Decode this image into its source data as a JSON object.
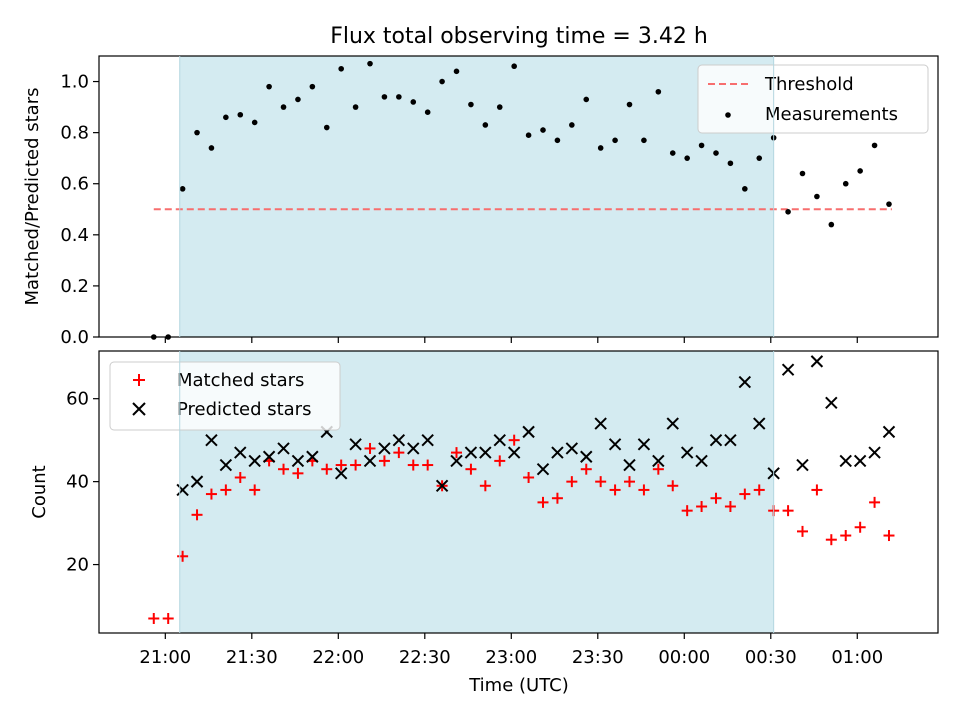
{
  "chart_data": [
    {
      "type": "scatter",
      "title": "Flux total observing time = 3.42 h",
      "xlabel": "",
      "ylabel": "Matched/Predicted stars",
      "ylim": [
        0.0,
        1.1
      ],
      "yticks": [
        "0.0",
        "0.2",
        "0.4",
        "0.6",
        "0.8",
        "1.0"
      ],
      "legend_position": "top-right",
      "shaded_interval": {
        "start": "21:05",
        "end": "00:31",
        "color": "#d4ebf1"
      },
      "threshold": {
        "name": "Threshold",
        "value": 0.5,
        "start": "20:56",
        "end": "01:12",
        "color": "#f76e6e"
      },
      "series": [
        {
          "name": "Measurements",
          "color": "#000000",
          "points": [
            [
              "20:56",
              0.0
            ],
            [
              "21:01",
              0.0
            ],
            [
              "21:06",
              0.58
            ],
            [
              "21:11",
              0.8
            ],
            [
              "21:16",
              0.74
            ],
            [
              "21:21",
              0.86
            ],
            [
              "21:26",
              0.87
            ],
            [
              "21:31",
              0.84
            ],
            [
              "21:36",
              0.98
            ],
            [
              "21:41",
              0.9
            ],
            [
              "21:46",
              0.93
            ],
            [
              "21:51",
              0.98
            ],
            [
              "21:56",
              0.82
            ],
            [
              "22:01",
              1.05
            ],
            [
              "22:06",
              0.9
            ],
            [
              "22:11",
              1.07
            ],
            [
              "22:16",
              0.94
            ],
            [
              "22:21",
              0.94
            ],
            [
              "22:26",
              0.92
            ],
            [
              "22:31",
              0.88
            ],
            [
              "22:36",
              1.0
            ],
            [
              "22:41",
              1.04
            ],
            [
              "22:46",
              0.91
            ],
            [
              "22:51",
              0.83
            ],
            [
              "22:56",
              0.9
            ],
            [
              "23:01",
              1.06
            ],
            [
              "23:06",
              0.79
            ],
            [
              "23:11",
              0.81
            ],
            [
              "23:16",
              0.77
            ],
            [
              "23:21",
              0.83
            ],
            [
              "23:26",
              0.93
            ],
            [
              "23:31",
              0.74
            ],
            [
              "23:36",
              0.77
            ],
            [
              "23:41",
              0.91
            ],
            [
              "23:46",
              0.77
            ],
            [
              "23:51",
              0.96
            ],
            [
              "23:56",
              0.72
            ],
            [
              "00:01",
              0.7
            ],
            [
              "00:06",
              0.75
            ],
            [
              "00:11",
              0.72
            ],
            [
              "00:16",
              0.68
            ],
            [
              "00:21",
              0.58
            ],
            [
              "00:26",
              0.7
            ],
            [
              "00:31",
              0.78
            ],
            [
              "00:36",
              0.49
            ],
            [
              "00:41",
              0.64
            ],
            [
              "00:46",
              0.55
            ],
            [
              "00:51",
              0.44
            ],
            [
              "00:56",
              0.6
            ],
            [
              "01:01",
              0.65
            ],
            [
              "01:06",
              0.75
            ],
            [
              "01:11",
              0.52
            ]
          ]
        }
      ]
    },
    {
      "type": "scatter",
      "title": "",
      "xlabel": "Time (UTC)",
      "ylabel": "Count",
      "ylim": [
        3.5,
        71.5
      ],
      "yticks": [
        "20",
        "40",
        "60"
      ],
      "xlim": [
        "20:37",
        "01:28"
      ],
      "xticks": [
        "21:00",
        "21:30",
        "22:00",
        "22:30",
        "23:00",
        "23:30",
        "00:00",
        "00:30",
        "01:00"
      ],
      "legend_position": "top-left",
      "shaded_interval": {
        "start": "21:05",
        "end": "00:31",
        "color": "#d4ebf1"
      },
      "series": [
        {
          "name": "Matched stars",
          "marker": "+",
          "color": "#ff0000",
          "points": [
            [
              "20:56",
              7
            ],
            [
              "21:01",
              7
            ],
            [
              "21:06",
              22
            ],
            [
              "21:11",
              32
            ],
            [
              "21:16",
              37
            ],
            [
              "21:21",
              38
            ],
            [
              "21:26",
              41
            ],
            [
              "21:31",
              38
            ],
            [
              "21:36",
              45
            ],
            [
              "21:41",
              43
            ],
            [
              "21:46",
              42
            ],
            [
              "21:51",
              45
            ],
            [
              "21:56",
              43
            ],
            [
              "22:01",
              44
            ],
            [
              "22:06",
              44
            ],
            [
              "22:11",
              48
            ],
            [
              "22:16",
              45
            ],
            [
              "22:21",
              47
            ],
            [
              "22:26",
              44
            ],
            [
              "22:31",
              44
            ],
            [
              "22:36",
              39
            ],
            [
              "22:41",
              47
            ],
            [
              "22:46",
              43
            ],
            [
              "22:51",
              39
            ],
            [
              "22:56",
              45
            ],
            [
              "23:01",
              50
            ],
            [
              "23:06",
              41
            ],
            [
              "23:11",
              35
            ],
            [
              "23:16",
              36
            ],
            [
              "23:21",
              40
            ],
            [
              "23:26",
              43
            ],
            [
              "23:31",
              40
            ],
            [
              "23:36",
              38
            ],
            [
              "23:41",
              40
            ],
            [
              "23:46",
              38
            ],
            [
              "23:51",
              43
            ],
            [
              "23:56",
              39
            ],
            [
              "00:01",
              33
            ],
            [
              "00:06",
              34
            ],
            [
              "00:11",
              36
            ],
            [
              "00:16",
              34
            ],
            [
              "00:21",
              37
            ],
            [
              "00:26",
              38
            ],
            [
              "00:31",
              33
            ],
            [
              "00:36",
              33
            ],
            [
              "00:41",
              28
            ],
            [
              "00:46",
              38
            ],
            [
              "00:51",
              26
            ],
            [
              "00:56",
              27
            ],
            [
              "01:01",
              29
            ],
            [
              "01:06",
              35
            ],
            [
              "01:11",
              27
            ]
          ]
        },
        {
          "name": "Predicted stars",
          "marker": "x",
          "color": "#000000",
          "points": [
            [
              "21:06",
              38
            ],
            [
              "21:11",
              40
            ],
            [
              "21:16",
              50
            ],
            [
              "21:21",
              44
            ],
            [
              "21:26",
              47
            ],
            [
              "21:31",
              45
            ],
            [
              "21:36",
              46
            ],
            [
              "21:41",
              48
            ],
            [
              "21:46",
              45
            ],
            [
              "21:51",
              46
            ],
            [
              "21:56",
              52
            ],
            [
              "22:01",
              42
            ],
            [
              "22:06",
              49
            ],
            [
              "22:11",
              45
            ],
            [
              "22:16",
              48
            ],
            [
              "22:21",
              50
            ],
            [
              "22:26",
              48
            ],
            [
              "22:31",
              50
            ],
            [
              "22:36",
              39
            ],
            [
              "22:41",
              45
            ],
            [
              "22:46",
              47
            ],
            [
              "22:51",
              47
            ],
            [
              "22:56",
              50
            ],
            [
              "23:01",
              47
            ],
            [
              "23:06",
              52
            ],
            [
              "23:11",
              43
            ],
            [
              "23:16",
              47
            ],
            [
              "23:21",
              48
            ],
            [
              "23:26",
              46
            ],
            [
              "23:31",
              54
            ],
            [
              "23:36",
              49
            ],
            [
              "23:41",
              44
            ],
            [
              "23:46",
              49
            ],
            [
              "23:51",
              45
            ],
            [
              "23:56",
              54
            ],
            [
              "00:01",
              47
            ],
            [
              "00:06",
              45
            ],
            [
              "00:11",
              50
            ],
            [
              "00:16",
              50
            ],
            [
              "00:21",
              64
            ],
            [
              "00:26",
              54
            ],
            [
              "00:31",
              42
            ],
            [
              "00:36",
              67
            ],
            [
              "00:41",
              44
            ],
            [
              "00:46",
              69
            ],
            [
              "00:51",
              59
            ],
            [
              "00:56",
              45
            ],
            [
              "01:01",
              45
            ],
            [
              "01:06",
              47
            ],
            [
              "01:11",
              52
            ]
          ]
        }
      ]
    }
  ]
}
